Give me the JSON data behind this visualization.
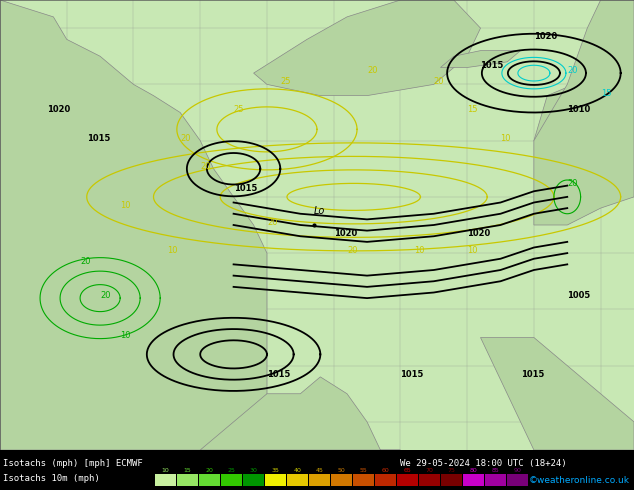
{
  "title_line1": "Isotachs (mph) [mph] ECMWF",
  "title_line2": "We 29-05-2024 18:00 UTC (18+24)",
  "legend_label": "Isotachs 10m (mph)",
  "copyright": "©weatheronline.co.uk",
  "colorbar_values": [
    10,
    15,
    20,
    25,
    30,
    35,
    40,
    45,
    50,
    55,
    60,
    65,
    70,
    75,
    80,
    85,
    90
  ],
  "colorbar_colors": [
    "#c8f0a0",
    "#96e664",
    "#64dc32",
    "#32c800",
    "#009600",
    "#f0f000",
    "#e6c800",
    "#dca000",
    "#d27800",
    "#c85000",
    "#be2800",
    "#b40000",
    "#960000",
    "#780000",
    "#c800c8",
    "#a000a0",
    "#780078"
  ],
  "figsize": [
    6.34,
    4.9
  ],
  "dpi": 100,
  "map_ocean": "#c8e8b4",
  "map_land_light": "#b4d4a0",
  "map_land_dark": "#a0c08c",
  "bottom_bg": "#000000",
  "bottom_text_color": "#ffffff",
  "axis_tick_color": "#000000",
  "grid_line_color": "#888888",
  "isobar_color": "#000000",
  "isotach_yellow": "#c8c800",
  "isotach_green": "#00aa00",
  "isotach_cyan": "#00cccc"
}
